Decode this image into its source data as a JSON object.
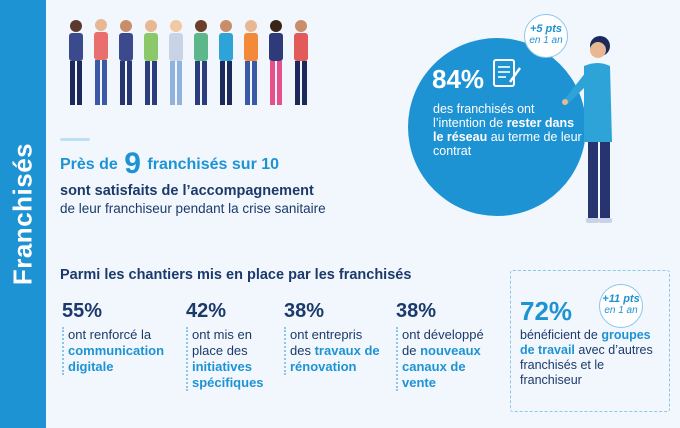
{
  "sidebar": {
    "title": "Franchisés"
  },
  "satisfaction": {
    "line1_pre": "Près de",
    "line1_big": "9",
    "line1_post": "franchisés sur 10",
    "line2": "sont satisfaits de l’accompagnement",
    "line3": "de leur franchiseur pendant la crise sanitaire"
  },
  "retention": {
    "pct": "84%",
    "text_a": "des franchisés ont l’intention de",
    "text_b": "rester dans le réseau",
    "text_c": "au terme de leur contrat",
    "bubble_line1": "+5 pts",
    "bubble_line2": "en 1 an"
  },
  "chantiers": {
    "title": "Parmi les chantiers mis en place par les franchisés",
    "items": [
      {
        "pct": "55%",
        "text": "ont renforcé la",
        "highlight": "communication digitale"
      },
      {
        "pct": "42%",
        "text": "ont mis en place des",
        "highlight": "initiatives spécifiques"
      },
      {
        "pct": "38%",
        "text": "ont entrepris des",
        "highlight": "travaux de rénovation"
      },
      {
        "pct": "38%",
        "text": "ont développé de",
        "highlight": "nouveaux canaux de vente"
      }
    ]
  },
  "groupes": {
    "pct": "72%",
    "text_a": "bénéficient de",
    "highlight": "groupes de travail",
    "text_b": "avec d’autres franchisés et le franchiseur",
    "bubble_line1": "+11 pts",
    "bubble_line2": "en 1 an"
  },
  "colors": {
    "accent": "#1e93d4",
    "navy": "#1b3a6b"
  }
}
